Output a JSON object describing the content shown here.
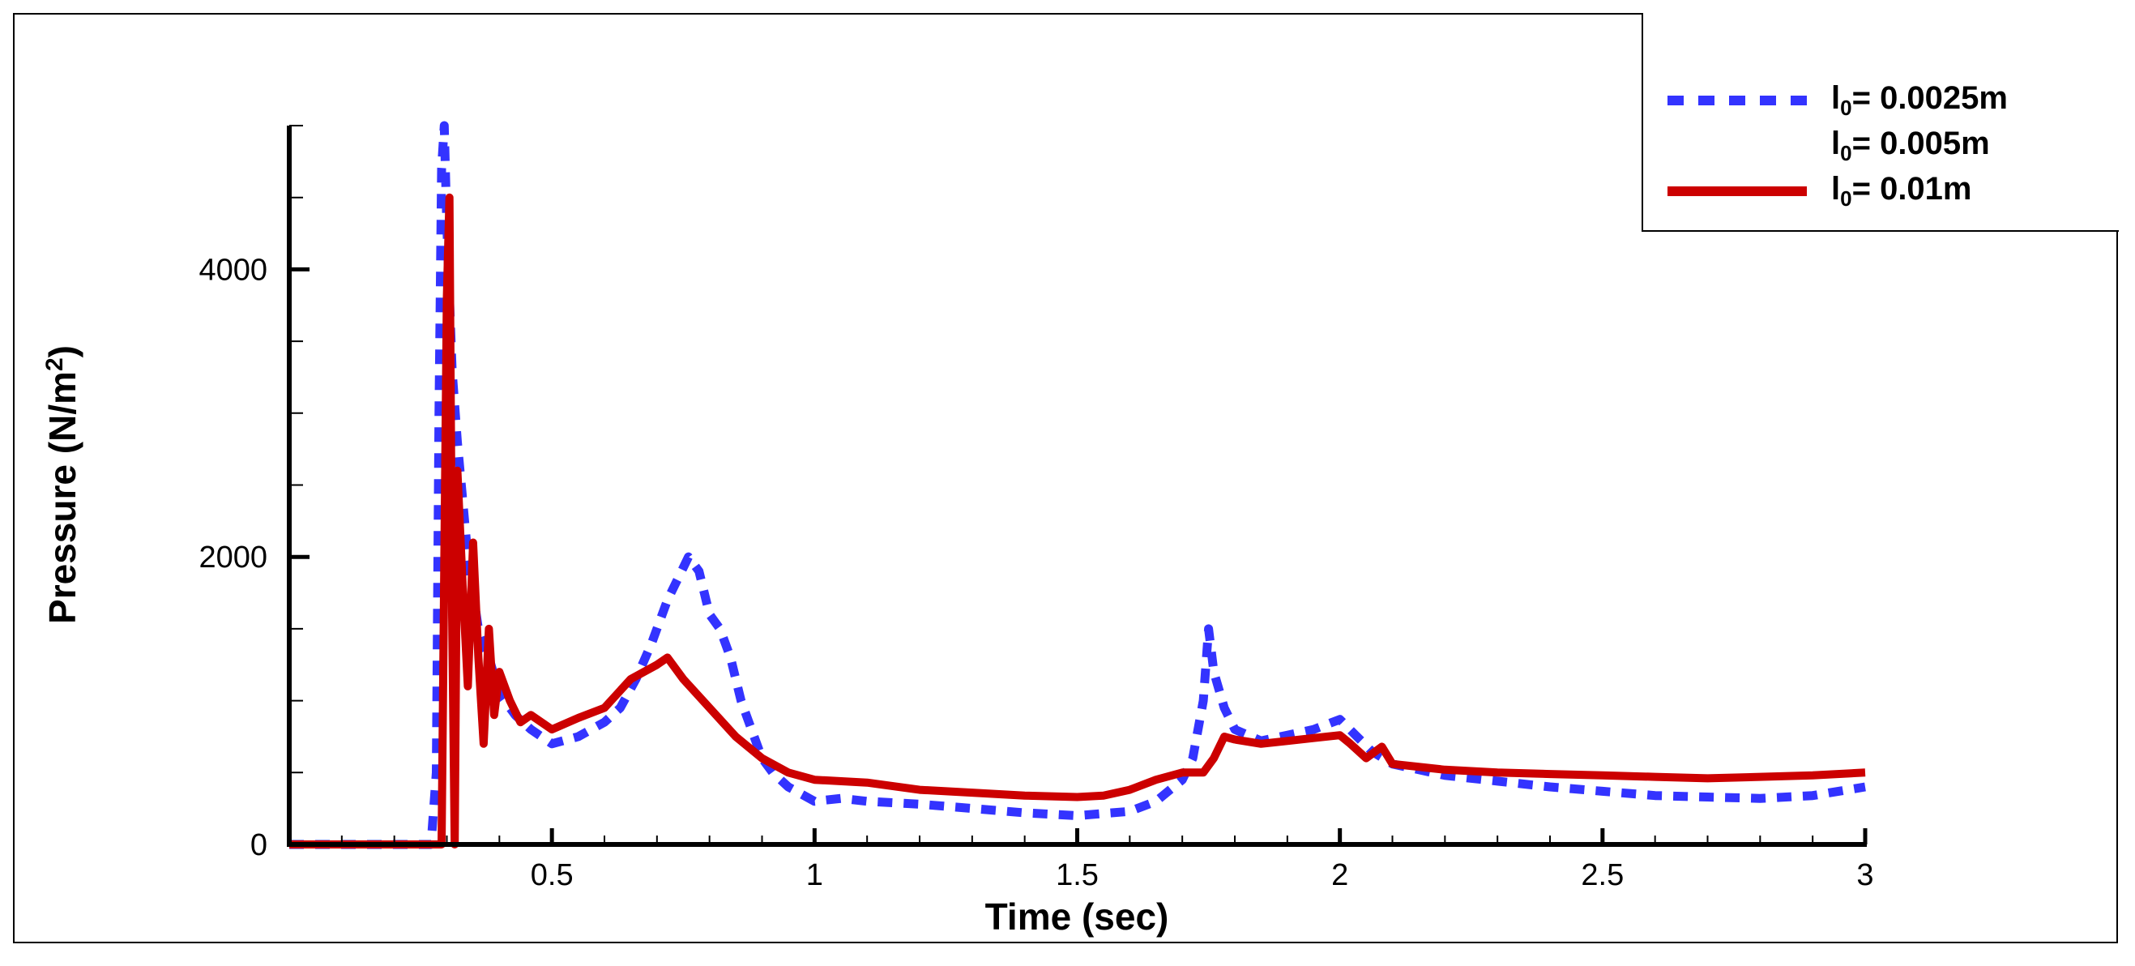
{
  "chart_data": {
    "type": "line",
    "title": "",
    "xlabel": "Time (sec)",
    "ylabel": "Pressure (N/m²)",
    "ylabel_base": "Pressure (N/m",
    "ylabel_sup": "2",
    "ylabel_end": ")",
    "xlim": [
      0,
      3
    ],
    "ylim": [
      0,
      5000
    ],
    "x_ticks": [
      0.5,
      1,
      1.5,
      2,
      2.5,
      3
    ],
    "x_tick_labels": [
      "0.5",
      "1",
      "1.5",
      "2",
      "2.5",
      "3"
    ],
    "x_minor_step": 0.1,
    "y_ticks": [
      0,
      2000,
      4000
    ],
    "y_tick_labels": [
      "0",
      "2000",
      "4000"
    ],
    "y_minor_step": 500,
    "grid": false,
    "legend_position": "top-right",
    "series": [
      {
        "name": "l0= 0.0025m",
        "legend_base": "l",
        "legend_sub": "0",
        "legend_rest": "= 0.0025m",
        "color": "#3333ff",
        "style": "dashed",
        "x": [
          0,
          0.27,
          0.28,
          0.285,
          0.29,
          0.295,
          0.3,
          0.31,
          0.32,
          0.33,
          0.34,
          0.36,
          0.38,
          0.4,
          0.43,
          0.46,
          0.5,
          0.55,
          0.6,
          0.63,
          0.66,
          0.69,
          0.72,
          0.74,
          0.76,
          0.78,
          0.8,
          0.82,
          0.84,
          0.86,
          0.88,
          0.9,
          0.92,
          0.95,
          1.0,
          1.05,
          1.1,
          1.2,
          1.3,
          1.4,
          1.5,
          1.6,
          1.65,
          1.7,
          1.72,
          1.74,
          1.75,
          1.76,
          1.78,
          1.8,
          1.85,
          1.9,
          1.95,
          2.0,
          2.03,
          2.06,
          2.1,
          2.2,
          2.3,
          2.4,
          2.5,
          2.6,
          2.7,
          2.8,
          2.9,
          3.0
        ],
        "y": [
          0,
          0,
          500,
          3000,
          4700,
          5000,
          4300,
          3300,
          2800,
          2400,
          2000,
          1500,
          1300,
          1050,
          900,
          800,
          700,
          750,
          850,
          950,
          1150,
          1400,
          1700,
          1850,
          2000,
          1900,
          1600,
          1500,
          1300,
          1000,
          800,
          600,
          500,
          400,
          300,
          320,
          300,
          280,
          250,
          220,
          200,
          230,
          300,
          450,
          600,
          1000,
          1500,
          1200,
          950,
          800,
          720,
          760,
          800,
          870,
          760,
          650,
          560,
          480,
          440,
          400,
          370,
          340,
          330,
          320,
          340,
          400
        ]
      },
      {
        "name": "l0= 0.005m",
        "legend_base": "l",
        "legend_sub": "0",
        "legend_rest": "= 0.005m",
        "color": "",
        "style": "none",
        "x": [],
        "y": []
      },
      {
        "name": "l0= 0.01m",
        "legend_base": "l",
        "legend_sub": "0",
        "legend_rest": "= 0.01m",
        "color": "#cc0000",
        "style": "solid",
        "x": [
          0,
          0.28,
          0.29,
          0.3,
          0.305,
          0.31,
          0.315,
          0.32,
          0.33,
          0.34,
          0.35,
          0.36,
          0.37,
          0.38,
          0.39,
          0.4,
          0.42,
          0.44,
          0.46,
          0.5,
          0.55,
          0.6,
          0.65,
          0.7,
          0.72,
          0.75,
          0.8,
          0.85,
          0.9,
          0.95,
          1.0,
          1.1,
          1.2,
          1.3,
          1.4,
          1.5,
          1.55,
          1.6,
          1.65,
          1.7,
          1.74,
          1.76,
          1.78,
          1.8,
          1.85,
          1.9,
          1.95,
          2.0,
          2.02,
          2.05,
          2.08,
          2.1,
          2.2,
          2.3,
          2.4,
          2.5,
          2.6,
          2.7,
          2.8,
          2.9,
          3.0
        ],
        "y": [
          0,
          0,
          0,
          3800,
          4500,
          1600,
          0,
          2600,
          1800,
          1100,
          2100,
          1300,
          700,
          1500,
          900,
          1200,
          1000,
          850,
          900,
          800,
          880,
          950,
          1150,
          1250,
          1300,
          1150,
          950,
          750,
          600,
          500,
          450,
          430,
          380,
          360,
          340,
          330,
          340,
          380,
          450,
          500,
          500,
          600,
          750,
          730,
          700,
          720,
          740,
          760,
          700,
          600,
          680,
          560,
          520,
          500,
          490,
          480,
          470,
          460,
          470,
          480,
          500
        ]
      }
    ]
  }
}
